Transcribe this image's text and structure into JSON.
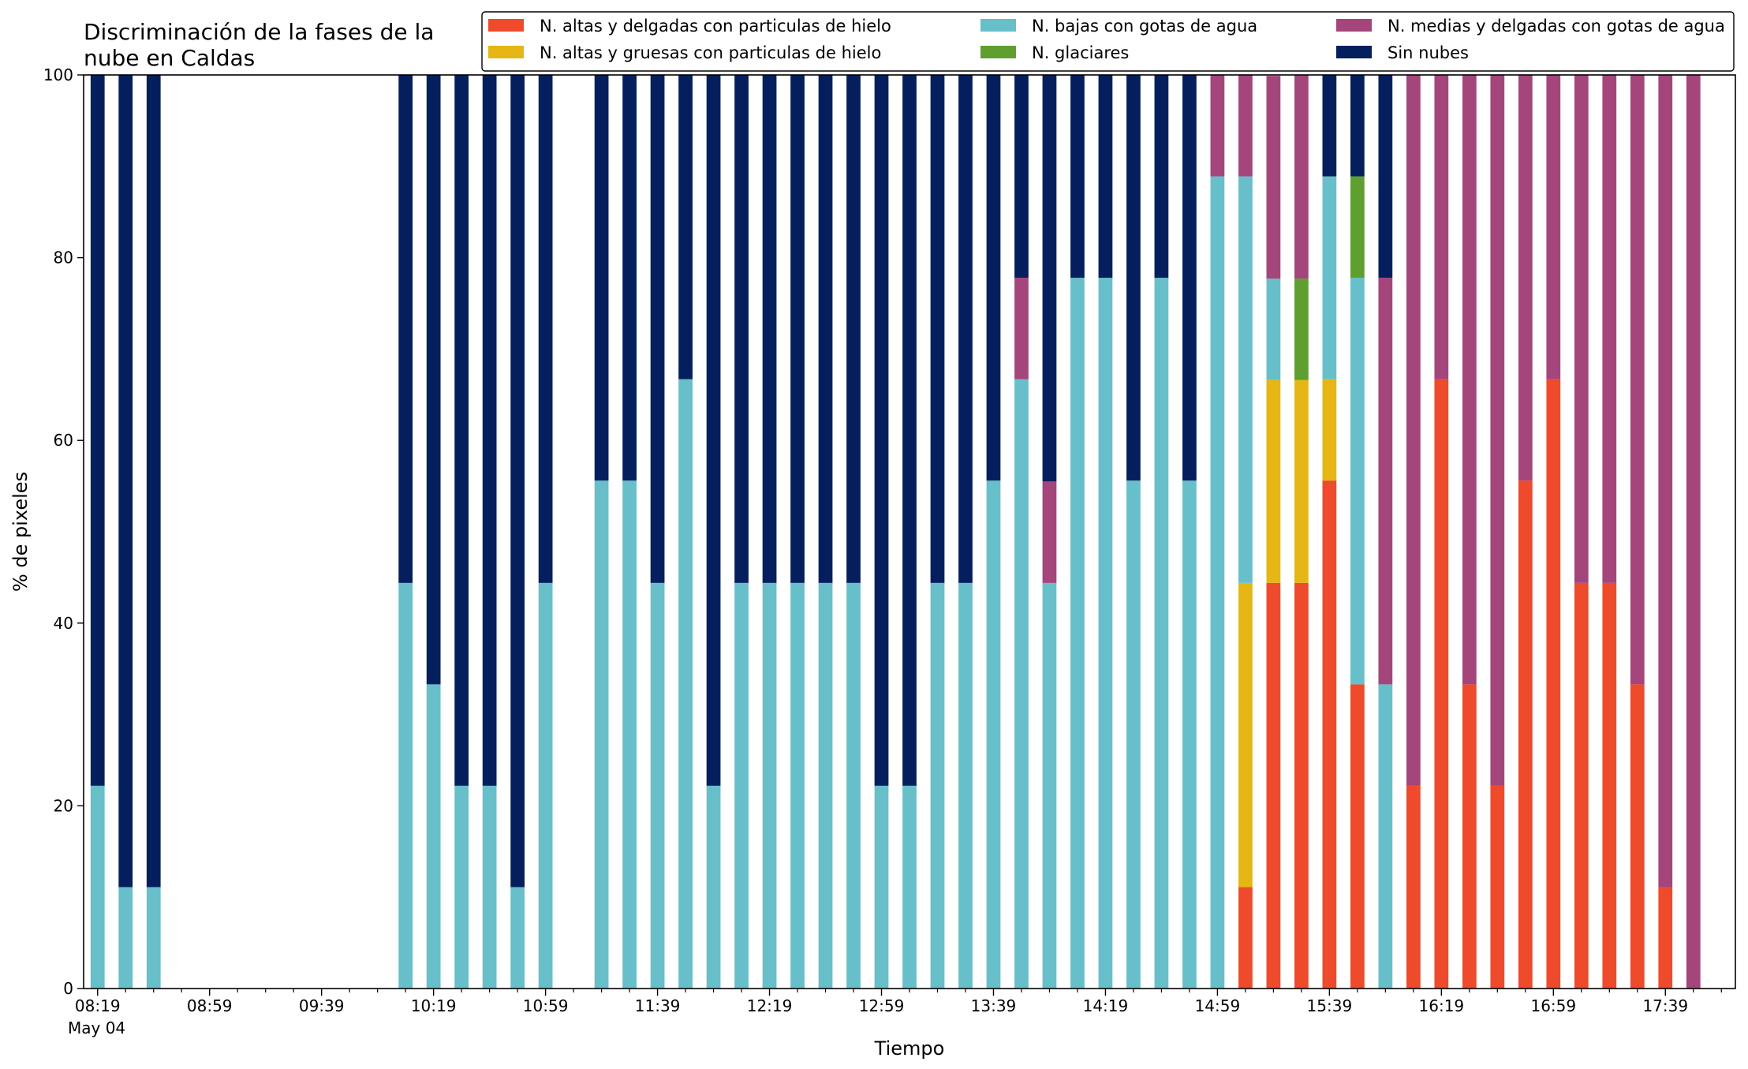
{
  "chart_data": {
    "type": "bar",
    "stacked": true,
    "title_lines": [
      "Discriminación de la fases de la",
      "nube en Caldas"
    ],
    "xlabel": "Tiempo",
    "ylabel": "% de pixeles",
    "ylim": [
      0,
      100
    ],
    "yticks": [
      0,
      20,
      40,
      60,
      80,
      100
    ],
    "xlim": [
      "08:14",
      "18:04"
    ],
    "x_tick_labels": [
      "08:19",
      "08:59",
      "09:39",
      "10:19",
      "10:59",
      "11:39",
      "12:19",
      "12:59",
      "13:39",
      "14:19",
      "14:59",
      "15:39",
      "16:19",
      "16:59",
      "17:39"
    ],
    "x_date_label": "May 04",
    "bar_width_minutes": 5,
    "legend": {
      "placement": "top-right",
      "columns": 3
    },
    "x": [
      "08:19",
      "08:29",
      "08:39",
      "10:09",
      "10:19",
      "10:29",
      "10:39",
      "10:49",
      "10:59",
      "11:19",
      "11:29",
      "11:39",
      "11:49",
      "11:59",
      "12:09",
      "12:19",
      "12:29",
      "12:39",
      "12:49",
      "12:59",
      "13:09",
      "13:19",
      "13:29",
      "13:39",
      "13:49",
      "13:59",
      "14:09",
      "14:19",
      "14:29",
      "14:39",
      "14:49",
      "14:59",
      "15:09",
      "15:19",
      "15:29",
      "15:39",
      "15:49",
      "15:59",
      "16:09",
      "16:19",
      "16:29",
      "16:39",
      "16:49",
      "16:59",
      "17:09",
      "17:19",
      "17:29",
      "17:39",
      "17:49"
    ],
    "series": [
      {
        "name": "N. altas y delgadas con particulas de hielo",
        "color": "#ee4a2b",
        "values": [
          0,
          0,
          0,
          0,
          0,
          0,
          0,
          0,
          0,
          0,
          0,
          0,
          0,
          0,
          0,
          0,
          0,
          0,
          0,
          0,
          0,
          0,
          0,
          0,
          0,
          0,
          0,
          0,
          0,
          0,
          0,
          0,
          11.1,
          44.4,
          44.4,
          55.6,
          33.3,
          0,
          22.2,
          66.7,
          33.3,
          22.2,
          55.6,
          66.7,
          44.4,
          44.4,
          33.3,
          11.1,
          0
        ]
      },
      {
        "name": "N. altas y gruesas con particulas de hielo",
        "color": "#e5b614",
        "values": [
          0,
          0,
          0,
          0,
          0,
          0,
          0,
          0,
          0,
          0,
          0,
          0,
          0,
          0,
          0,
          0,
          0,
          0,
          0,
          0,
          0,
          0,
          0,
          0,
          0,
          0,
          0,
          0,
          0,
          0,
          0,
          0,
          33.3,
          22.2,
          22.2,
          11.1,
          0,
          0,
          0,
          0,
          0,
          0,
          0,
          0,
          0,
          0,
          0,
          0,
          0
        ]
      },
      {
        "name": "N. bajas con gotas de agua",
        "color": "#67bfca",
        "values": [
          22.2,
          11.1,
          11.1,
          44.4,
          33.3,
          22.2,
          22.2,
          11.1,
          44.4,
          55.6,
          55.6,
          44.4,
          66.7,
          22.2,
          44.4,
          44.4,
          44.4,
          44.4,
          44.4,
          22.2,
          22.2,
          44.4,
          44.4,
          55.6,
          66.7,
          44.4,
          77.8,
          77.8,
          55.6,
          77.8,
          55.6,
          88.9,
          44.5,
          11.1,
          0,
          22.2,
          44.5,
          33.3,
          0,
          0,
          0,
          0,
          0,
          0,
          0,
          0,
          0,
          0,
          0
        ]
      },
      {
        "name": "N. glaciares",
        "color": "#5f9f2f",
        "values": [
          0,
          0,
          0,
          0,
          0,
          0,
          0,
          0,
          0,
          0,
          0,
          0,
          0,
          0,
          0,
          0,
          0,
          0,
          0,
          0,
          0,
          0,
          0,
          0,
          0,
          0,
          0,
          0,
          0,
          0,
          0,
          0,
          0,
          0,
          11.1,
          0,
          11.1,
          0,
          0,
          0,
          0,
          0,
          0,
          0,
          0,
          0,
          0,
          0,
          0
        ]
      },
      {
        "name": "N. medias y delgadas con gotas de agua",
        "color": "#a4457c",
        "values": [
          0,
          0,
          0,
          0,
          0,
          0,
          0,
          0,
          0,
          0,
          0,
          0,
          0,
          0,
          0,
          0,
          0,
          0,
          0,
          0,
          0,
          0,
          0,
          0,
          11.1,
          11.1,
          0,
          0,
          0,
          0,
          0,
          11.1,
          11.1,
          22.2,
          22.3,
          0,
          0,
          44.5,
          77.8,
          33.3,
          66.7,
          77.8,
          44.4,
          33.3,
          55.6,
          55.6,
          66.7,
          88.9,
          100
        ]
      },
      {
        "name": "Sin nubes",
        "color": "#051f5e",
        "values": [
          77.8,
          88.9,
          88.9,
          55.6,
          66.7,
          77.8,
          77.8,
          88.9,
          55.6,
          44.4,
          44.4,
          55.6,
          33.3,
          77.8,
          55.6,
          55.6,
          55.6,
          55.6,
          55.6,
          77.8,
          77.8,
          55.6,
          55.6,
          44.4,
          22.2,
          44.5,
          22.2,
          22.2,
          44.4,
          22.2,
          44.4,
          0,
          0,
          0,
          0,
          11.1,
          11.1,
          22.2,
          0,
          0,
          0,
          0,
          0,
          0,
          0,
          0,
          0,
          0,
          0
        ]
      }
    ]
  }
}
